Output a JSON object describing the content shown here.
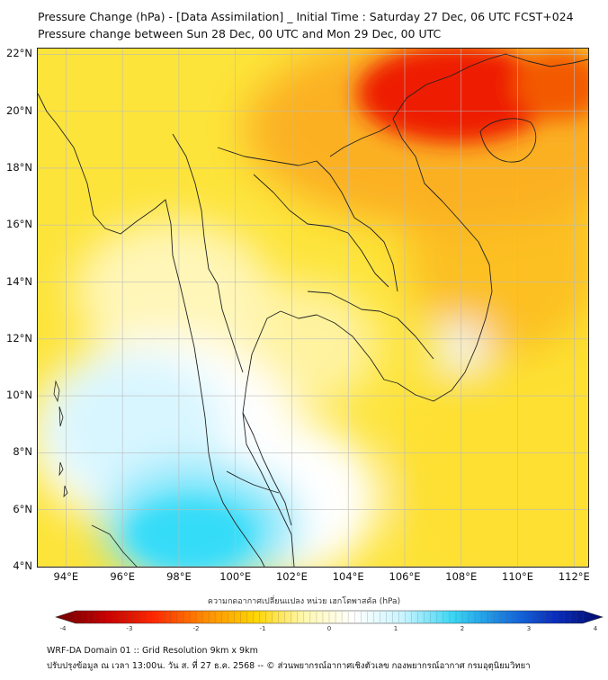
{
  "header": {
    "title": "Pressure Change (hPa) - [Data Assimilation] _ Initial Time : Saturday 27 Dec, 06 UTC FCST+024",
    "subtitle": "Pressure change between Sun 28 Dec, 00 UTC and Mon 29 Dec, 00 UTC"
  },
  "map": {
    "lon_range": [
      93,
      112.5
    ],
    "lat_range": [
      4,
      22.2
    ],
    "lat_labels": [
      "22°N",
      "20°N",
      "18°N",
      "16°N",
      "14°N",
      "12°N",
      "10°N",
      "8°N",
      "6°N",
      "4°N"
    ],
    "lat_values": [
      22,
      20,
      18,
      16,
      14,
      12,
      10,
      8,
      6,
      4
    ],
    "lon_labels": [
      "94°E",
      "96°E",
      "98°E",
      "100°E",
      "102°E",
      "104°E",
      "106°E",
      "108°E",
      "110°E",
      "112°E"
    ],
    "lon_values": [
      94,
      96,
      98,
      100,
      102,
      104,
      106,
      108,
      110,
      112
    ],
    "colors": {
      "strong_fall": "#ee1a00",
      "fall": "#fb8f00",
      "slight_fall": "#fde030",
      "small_fall": "#fff3a0",
      "neutral": "#ffffff",
      "rise": "#c9f3ff",
      "strong_rise": "#35dcf8",
      "border": "#222222",
      "grid": "#bbbbbb"
    }
  },
  "colorbar": {
    "title": "ความกดอากาศเปลี่ยนแปลง หน่วย เฮกโตพาสคัล (hPa)",
    "ticks": [
      "-4",
      "-3",
      "-2",
      "-1",
      "0",
      "1",
      "2",
      "3",
      "4"
    ],
    "range": [
      -4,
      4
    ],
    "stops": [
      "#6e0000",
      "#c40000",
      "#ff2a00",
      "#ff8c00",
      "#ffd400",
      "#fff8b0",
      "#ffffff",
      "#c8f4ff",
      "#38d6f5",
      "#1a7fe0",
      "#0a2fc0",
      "#020a6a"
    ]
  },
  "footer": {
    "line1": "WRF-DA Domain 01 :: Grid Resolution 9km x 9km",
    "line2": "ปรับปรุงข้อมูล ณ เวลา 13:00น. วัน ส. ที่ 27 ธ.ค. 2568 -- © ส่วนพยากรณ์อากาศเชิงตัวเลข กองพยากรณ์อากาศ กรมอุตุนิยมวิทยา"
  }
}
